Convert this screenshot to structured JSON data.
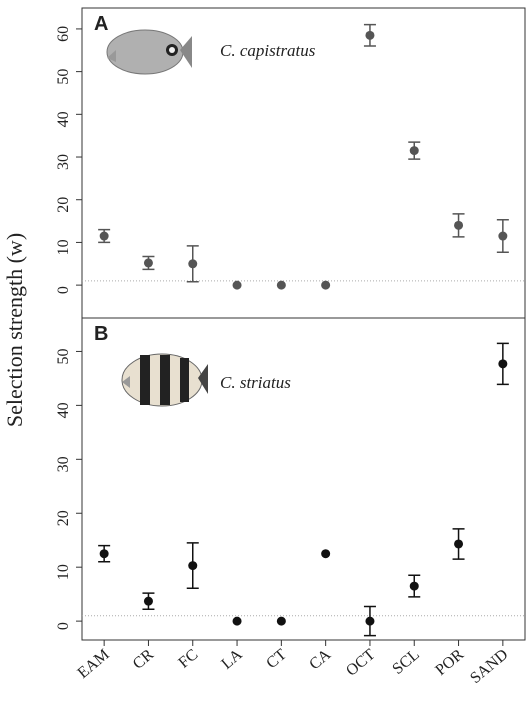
{
  "y_axis_label": "Selection strength (w)",
  "chart_data": [
    {
      "type": "scatter",
      "panel_label": "A",
      "species": "C. capistratus",
      "color": "#555555",
      "values": [
        11.5,
        5.2,
        5,
        0,
        0,
        0,
        58.5,
        31.5,
        14,
        11.5
      ],
      "errors": [
        1.5,
        1.5,
        4.2,
        null,
        null,
        null,
        2.5,
        2,
        2.7,
        3.8
      ],
      "reference_line": 1,
      "ylim": [
        -7.7,
        64.9
      ],
      "yticks": [
        0,
        10,
        20,
        30,
        40,
        50,
        60
      ]
    },
    {
      "type": "scatter",
      "panel_label": "B",
      "species": "C. striatus",
      "color": "#111111",
      "categories": [
        "EAM",
        "CR",
        "FC",
        "LA",
        "CT",
        "CA",
        "OCT",
        "SCL",
        "POR",
        "SAND"
      ],
      "values": [
        12.5,
        3.7,
        10.3,
        0,
        0,
        12.5,
        0,
        6.5,
        14.3,
        47.7
      ],
      "errors": [
        1.5,
        1.5,
        4.2,
        null,
        null,
        null,
        2.7,
        2,
        2.8,
        3.8
      ],
      "reference_line": 1,
      "ylim": [
        -3.5,
        56.2
      ],
      "yticks": [
        0,
        10,
        20,
        30,
        40,
        50
      ]
    }
  ]
}
